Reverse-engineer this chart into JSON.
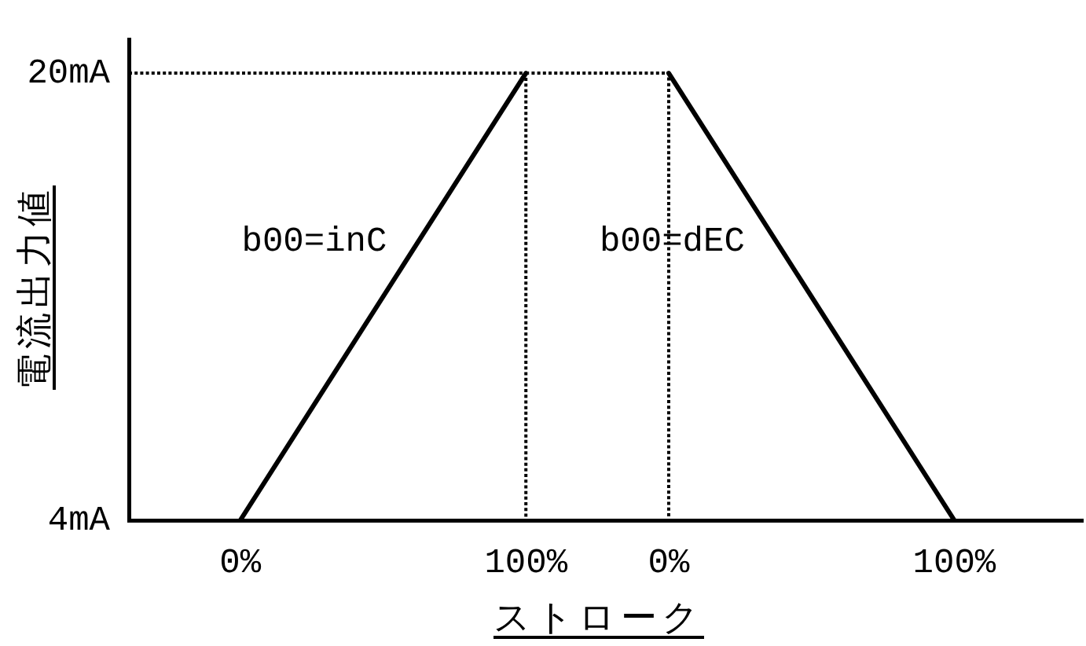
{
  "chart_data": {
    "type": "line",
    "xlabel": "ストローク",
    "ylabel": "電流出力値",
    "xlim": [
      -39,
      295
    ],
    "ylim": [
      4,
      21.2
    ],
    "x2lim": [
      -189,
      145
    ],
    "xticks": [
      {
        "value": 0,
        "label": "0%"
      },
      {
        "value": 100,
        "label": "100%"
      }
    ],
    "x2ticks": [
      {
        "value": 0,
        "label": "0%"
      },
      {
        "value": 100,
        "label": "100%"
      }
    ],
    "yticks": [
      {
        "value": 4,
        "label": "4mA"
      },
      {
        "value": 20,
        "label": "20mA"
      }
    ],
    "series": [
      {
        "color": "#000000",
        "x": [
          0,
          100
        ],
        "values": [
          4,
          20
        ]
      },
      {
        "color": "#000000",
        "axis": "x2",
        "x": [
          0,
          100
        ],
        "values": [
          20,
          4
        ]
      },
      {
        "color": "#000000",
        "x": [
          -39,
          100,
          100
        ],
        "values": [
          20,
          20,
          4
        ],
        "line_style": "dotted"
      },
      {
        "color": "#000000",
        "axis": "x2",
        "x": [
          -50,
          0,
          0
        ],
        "values": [
          20,
          20,
          4
        ],
        "line_style": "dotted"
      }
    ],
    "annotations": [
      "b00=inC",
      "b00=dEC"
    ],
    "marker": "none",
    "line_style": "solid"
  }
}
